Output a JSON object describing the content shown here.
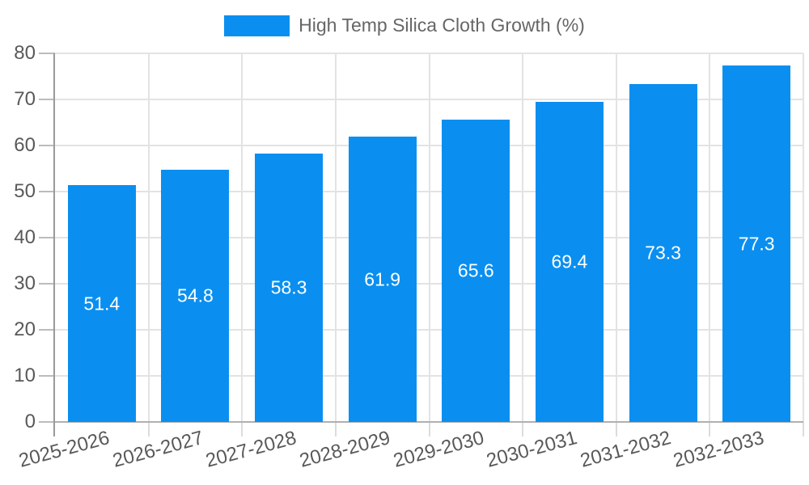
{
  "chart_data": {
    "type": "bar",
    "title": "",
    "xlabel": "",
    "ylabel": "",
    "legend": {
      "position": "top",
      "label": "High Temp Silica Cloth Growth (%)"
    },
    "categories": [
      "2025-2026",
      "2026-2027",
      "2027-2028",
      "2028-2029",
      "2029-2030",
      "2030-2031",
      "2031-2032",
      "2032-2033"
    ],
    "series": [
      {
        "name": "High Temp Silica Cloth Growth (%)",
        "values": [
          51.4,
          54.8,
          58.3,
          61.9,
          65.6,
          69.4,
          73.3,
          77.3
        ]
      }
    ],
    "bar_value_labels": [
      "51.4",
      "54.8",
      "58.3",
      "61.9",
      "65.6",
      "69.4",
      "73.3",
      "77.3"
    ],
    "ytick_labels": [
      "0",
      "10",
      "20",
      "30",
      "40",
      "50",
      "60",
      "70",
      "80"
    ],
    "ylim": [
      0,
      80
    ],
    "ytick_step": 10,
    "grid": true,
    "colors": {
      "bar": "#0a8ff0",
      "bar_label": "#ffffff",
      "grid": "#e3e3e3",
      "axis_line": "#9a9a9a",
      "baseline": "#b0b0b0",
      "y_tick_mark": "#bcbcbc",
      "x_tick_mark": "#dcdcdc",
      "tick_label": "#595959",
      "legend_text": "#666666",
      "background": "#ffffff"
    }
  }
}
